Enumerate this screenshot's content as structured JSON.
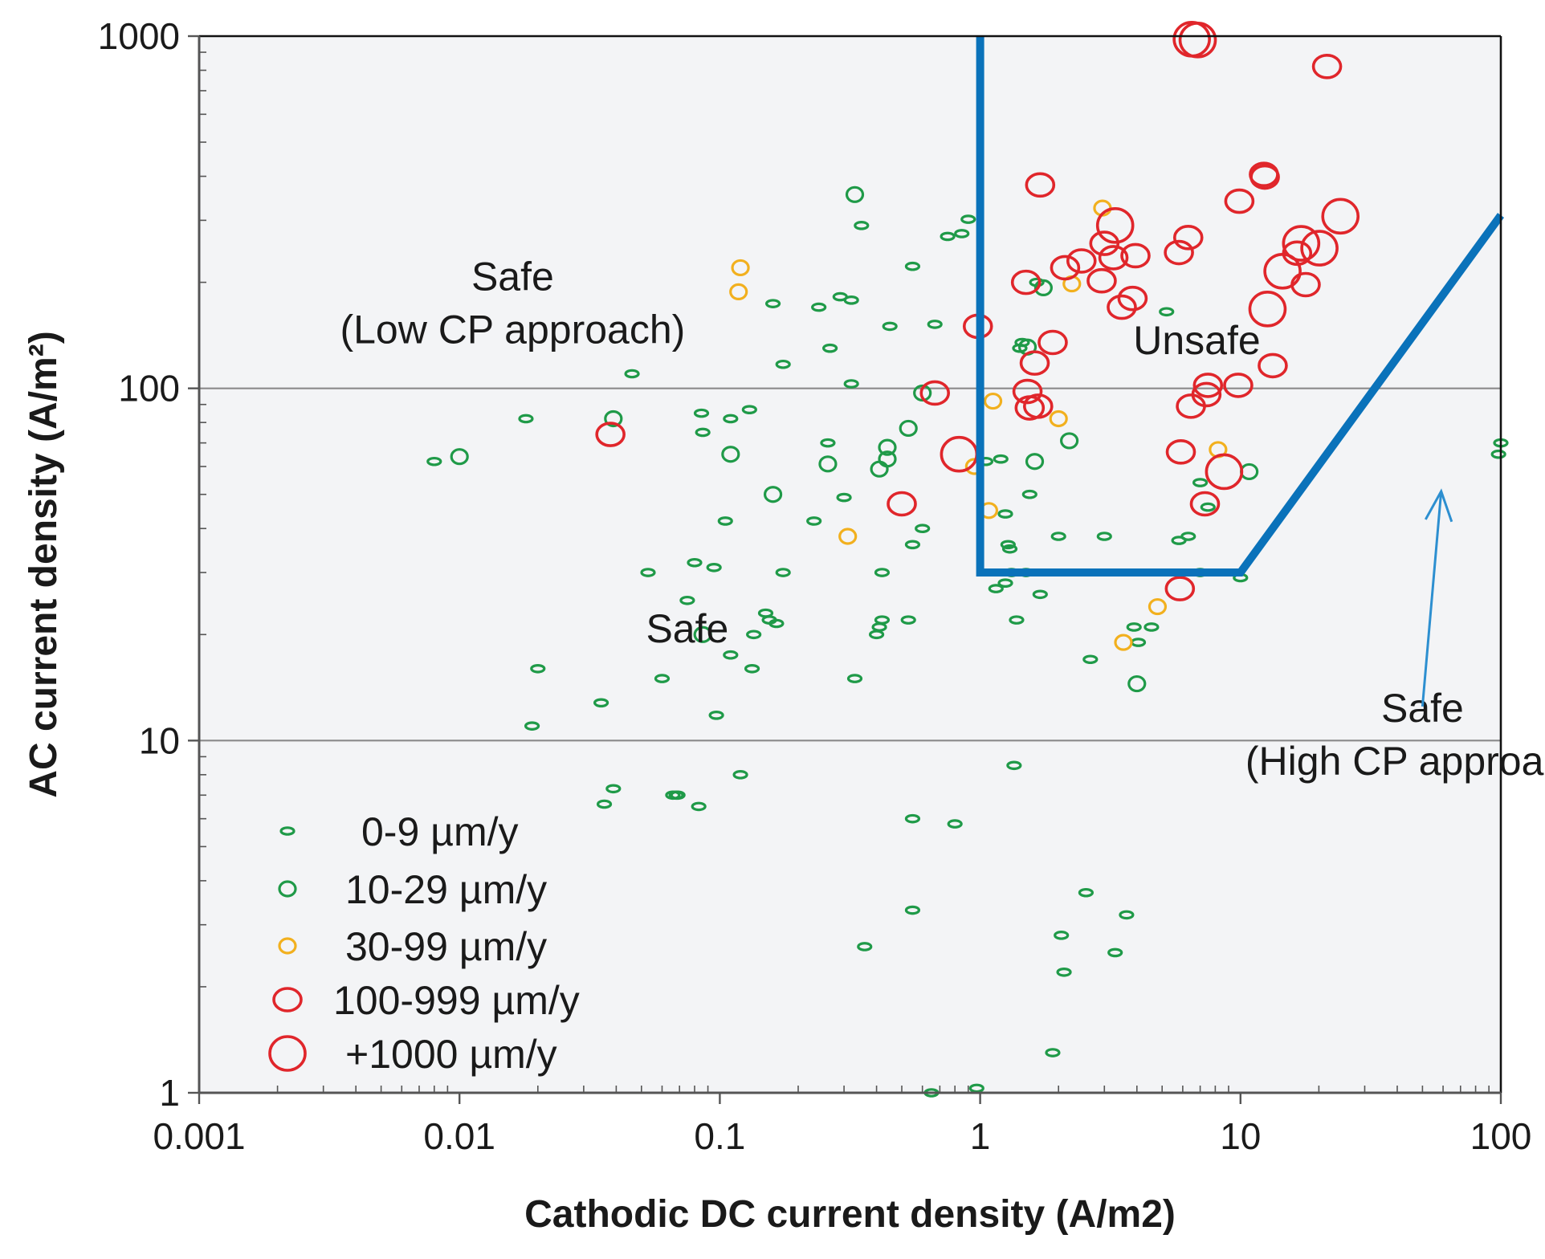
{
  "chart_data": {
    "type": "scatter",
    "xlabel": "Cathodic DC current density (A/m2)",
    "ylabel": "AC current density (A/m²)",
    "xscale": "log",
    "yscale": "log",
    "xlim": [
      0.001,
      100
    ],
    "ylim": [
      1,
      1000
    ],
    "xticks": [
      {
        "value": 0.001,
        "label": "0.001"
      },
      {
        "value": 0.01,
        "label": "0.01"
      },
      {
        "value": 0.1,
        "label": "0.1"
      },
      {
        "value": 1,
        "label": "1"
      },
      {
        "value": 10,
        "label": "10"
      },
      {
        "value": 100,
        "label": "100"
      }
    ],
    "yticks": [
      {
        "value": 1,
        "label": "1"
      },
      {
        "value": 10,
        "label": "10"
      },
      {
        "value": 100,
        "label": "100"
      },
      {
        "value": 1000,
        "label": "1000"
      }
    ],
    "gridlines_y": [
      10,
      100
    ],
    "background_color": "#f3f4f6",
    "boundary": {
      "color": "#0a72ba",
      "points": [
        [
          1,
          1000
        ],
        [
          1,
          30
        ],
        [
          10,
          30
        ],
        [
          100,
          310
        ]
      ]
    },
    "regions": [
      {
        "name": "safe-low-cp",
        "lines": [
          "Safe",
          "(Low CP approach)"
        ],
        "at": [
          0.016,
          190
        ]
      },
      {
        "name": "unsafe",
        "lines": [
          "Unsafe"
        ],
        "at": [
          6.8,
          125
        ]
      },
      {
        "name": "safe-middle",
        "lines": [
          "Safe"
        ],
        "at": [
          0.075,
          19
        ]
      },
      {
        "name": "safe-high-cp",
        "lines": [
          "Safe",
          "(High CP approach)"
        ],
        "at": [
          50,
          11.3
        ]
      }
    ],
    "arrow": {
      "from": [
        50,
        12.5
      ],
      "to": [
        59,
        51
      ],
      "color": "#2d8fd0"
    },
    "series": [
      {
        "name": "0-9 µm/y",
        "color": "#1f9a48",
        "size": "xs",
        "points": [
          [
            0.008,
            62
          ],
          [
            0.018,
            82
          ],
          [
            0.02,
            16
          ],
          [
            0.019,
            11
          ],
          [
            0.035,
            12.8
          ],
          [
            0.036,
            6.6
          ],
          [
            0.039,
            7.3
          ],
          [
            0.046,
            110
          ],
          [
            0.053,
            30
          ],
          [
            0.06,
            15
          ],
          [
            0.066,
            7
          ],
          [
            0.068,
            7
          ],
          [
            0.069,
            7
          ],
          [
            0.075,
            25
          ],
          [
            0.08,
            32
          ],
          [
            0.085,
            85
          ],
          [
            0.086,
            75
          ],
          [
            0.083,
            6.5
          ],
          [
            0.095,
            31
          ],
          [
            0.097,
            11.8
          ],
          [
            0.105,
            42
          ],
          [
            0.11,
            17.5
          ],
          [
            0.11,
            82
          ],
          [
            0.12,
            8
          ],
          [
            0.13,
            87
          ],
          [
            0.133,
            16
          ],
          [
            0.135,
            20
          ],
          [
            0.15,
            23
          ],
          [
            0.155,
            22
          ],
          [
            0.16,
            174
          ],
          [
            0.165,
            21.5
          ],
          [
            0.175,
            30
          ],
          [
            0.175,
            117
          ],
          [
            0.23,
            42
          ],
          [
            0.24,
            170
          ],
          [
            0.26,
            70
          ],
          [
            0.265,
            130
          ],
          [
            0.29,
            182
          ],
          [
            0.3,
            49
          ],
          [
            0.32,
            178
          ],
          [
            0.32,
            103
          ],
          [
            0.33,
            15
          ],
          [
            0.35,
            290
          ],
          [
            0.36,
            2.6
          ],
          [
            0.4,
            20
          ],
          [
            0.41,
            21
          ],
          [
            0.42,
            22
          ],
          [
            0.42,
            30
          ],
          [
            0.45,
            150
          ],
          [
            0.55,
            222
          ],
          [
            0.55,
            3.3
          ],
          [
            0.55,
            6
          ],
          [
            0.55,
            36
          ],
          [
            0.6,
            40
          ],
          [
            0.53,
            22
          ],
          [
            0.67,
            152
          ],
          [
            0.65,
            1
          ],
          [
            0.75,
            270
          ],
          [
            0.8,
            5.8
          ],
          [
            0.85,
            275
          ],
          [
            0.9,
            302
          ],
          [
            0.97,
            1.03
          ],
          [
            1.05,
            62
          ],
          [
            1.15,
            27
          ],
          [
            1.2,
            63
          ],
          [
            1.25,
            44
          ],
          [
            1.25,
            28
          ],
          [
            1.28,
            36
          ],
          [
            1.3,
            35
          ],
          [
            1.32,
            30
          ],
          [
            1.35,
            8.5
          ],
          [
            1.38,
            22
          ],
          [
            1.42,
            130
          ],
          [
            1.45,
            135
          ],
          [
            1.5,
            30
          ],
          [
            1.55,
            50
          ],
          [
            1.65,
            200
          ],
          [
            1.7,
            26
          ],
          [
            1.9,
            1.3
          ],
          [
            2.0,
            38
          ],
          [
            2.05,
            2.8
          ],
          [
            2.1,
            2.2
          ],
          [
            2.55,
            3.7
          ],
          [
            2.65,
            17
          ],
          [
            3.0,
            38
          ],
          [
            3.3,
            2.5
          ],
          [
            3.65,
            3.2
          ],
          [
            3.9,
            21
          ],
          [
            4.05,
            19
          ],
          [
            4.55,
            21
          ],
          [
            5.2,
            165
          ],
          [
            5.8,
            37
          ],
          [
            6.3,
            38
          ],
          [
            7.0,
            54
          ],
          [
            7.0,
            30
          ],
          [
            7.5,
            46
          ],
          [
            10.0,
            29
          ],
          [
            98,
            65
          ],
          [
            100,
            70
          ]
        ]
      },
      {
        "name": "10-29 µm/y",
        "color": "#1f9a48",
        "size": "sm",
        "points": [
          [
            0.01,
            64
          ],
          [
            0.039,
            82
          ],
          [
            0.086,
            20
          ],
          [
            0.11,
            65
          ],
          [
            0.16,
            50
          ],
          [
            0.26,
            61
          ],
          [
            0.33,
            355
          ],
          [
            0.41,
            59
          ],
          [
            0.44,
            63
          ],
          [
            0.44,
            68
          ],
          [
            0.53,
            77
          ],
          [
            0.6,
            97
          ],
          [
            1.52,
            131
          ],
          [
            1.75,
            193
          ],
          [
            1.62,
            62
          ],
          [
            2.2,
            71
          ],
          [
            4.0,
            14.5
          ],
          [
            10.8,
            58
          ]
        ]
      },
      {
        "name": "30-99 µm/y",
        "color": "#f2b01e",
        "size": "sm",
        "points": [
          [
            0.12,
            220
          ],
          [
            0.118,
            188
          ],
          [
            0.31,
            38
          ],
          [
            0.95,
            60
          ],
          [
            1.08,
            45
          ],
          [
            1.12,
            92
          ],
          [
            2.0,
            82
          ],
          [
            2.25,
            198
          ],
          [
            2.95,
            325
          ],
          [
            3.55,
            19
          ],
          [
            4.8,
            24
          ],
          [
            8.2,
            67
          ]
        ]
      },
      {
        "name": "100-999 µm/y",
        "color": "#e0262b",
        "size": "md",
        "points": [
          [
            0.038,
            74
          ],
          [
            0.5,
            47
          ],
          [
            0.67,
            97
          ],
          [
            0.98,
            150
          ],
          [
            1.5,
            200
          ],
          [
            1.52,
            98
          ],
          [
            1.55,
            88
          ],
          [
            1.62,
            118
          ],
          [
            1.67,
            89
          ],
          [
            1.7,
            378
          ],
          [
            1.9,
            135
          ],
          [
            2.12,
            220
          ],
          [
            2.45,
            230
          ],
          [
            2.93,
            202
          ],
          [
            3.0,
            258
          ],
          [
            3.25,
            235
          ],
          [
            3.5,
            170
          ],
          [
            3.85,
            180
          ],
          [
            3.95,
            238
          ],
          [
            5.8,
            243
          ],
          [
            5.85,
            27
          ],
          [
            5.9,
            66
          ],
          [
            6.3,
            268
          ],
          [
            6.45,
            89
          ],
          [
            7.3,
            47
          ],
          [
            7.5,
            102
          ],
          [
            7.4,
            96
          ],
          [
            9.8,
            102
          ],
          [
            9.9,
            340
          ],
          [
            12.3,
            405
          ],
          [
            12.4,
            398
          ],
          [
            13.3,
            116
          ],
          [
            17.8,
            197
          ],
          [
            21.5,
            820
          ],
          [
            16.5,
            242
          ]
        ]
      },
      {
        "name": "+1000 µm/y",
        "color": "#e0262b",
        "size": "lg",
        "points": [
          [
            0.83,
            65
          ],
          [
            3.3,
            290
          ],
          [
            6.5,
            980
          ],
          [
            6.85,
            975
          ],
          [
            8.65,
            58
          ],
          [
            12.7,
            168
          ],
          [
            14.5,
            215
          ],
          [
            17.1,
            258
          ],
          [
            20.1,
            250
          ],
          [
            24.2,
            308
          ]
        ]
      }
    ],
    "legend": {
      "position": "bottom-left",
      "entries": [
        {
          "label": "0-9 µm/y",
          "color": "#1f9a48",
          "size": "xs"
        },
        {
          "label": "10-29 µm/y",
          "color": "#1f9a48",
          "size": "sm"
        },
        {
          "label": "30-99 µm/y",
          "color": "#f2b01e",
          "size": "sm"
        },
        {
          "label": "100-999 µm/y",
          "color": "#e0262b",
          "size": "md"
        },
        {
          "label": "+1000 µm/y",
          "color": "#e0262b",
          "size": "lg"
        }
      ]
    }
  }
}
